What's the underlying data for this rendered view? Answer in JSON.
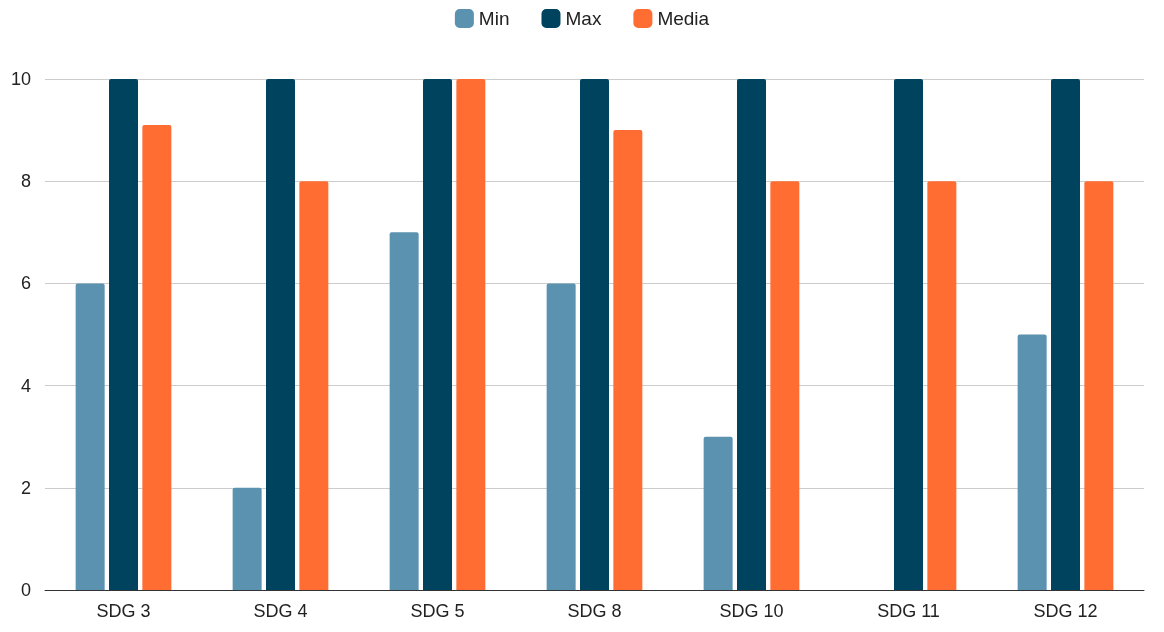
{
  "chart_data": {
    "type": "bar",
    "categories": [
      "SDG 3",
      "SDG 4",
      "SDG 5",
      "SDG 8",
      "SDG 10",
      "SDG 11",
      "SDG 12"
    ],
    "series": [
      {
        "name": "Min",
        "color": "#5a92b0",
        "values": [
          6,
          2,
          7,
          6,
          3,
          0,
          5
        ]
      },
      {
        "name": "Max",
        "color": "#00435f",
        "values": [
          10,
          10,
          10,
          10,
          10,
          10,
          10
        ]
      },
      {
        "name": "Media",
        "color": "#ff6d33",
        "values": [
          9.1,
          8,
          10,
          9,
          8,
          8,
          8
        ]
      }
    ],
    "ylim": [
      0,
      10
    ],
    "yticks": [
      0,
      2,
      4,
      6,
      8,
      10
    ],
    "grid": "y",
    "legend": "top"
  }
}
